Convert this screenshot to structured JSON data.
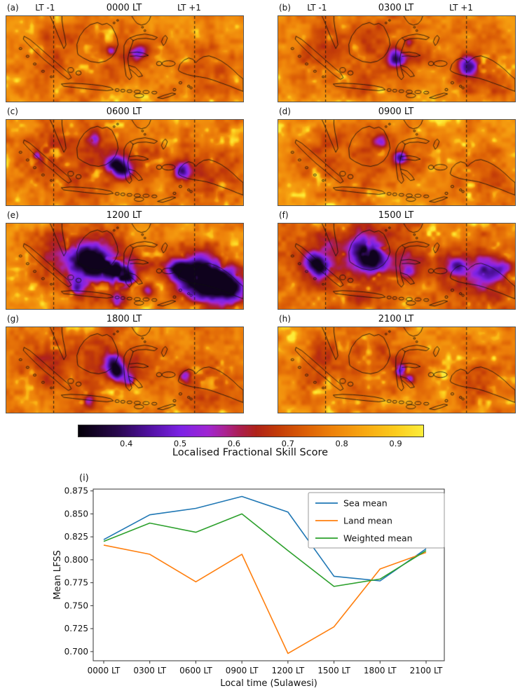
{
  "panels": [
    {
      "letter": "(a)",
      "title": "0000 LT",
      "lt_left": "LT -1",
      "lt_right": "LT +1"
    },
    {
      "letter": "(b)",
      "title": "0300 LT",
      "lt_left": "LT -1",
      "lt_right": "LT +1"
    },
    {
      "letter": "(c)",
      "title": "0600 LT"
    },
    {
      "letter": "(d)",
      "title": "0900 LT"
    },
    {
      "letter": "(e)",
      "title": "1200 LT"
    },
    {
      "letter": "(f)",
      "title": "1500 LT"
    },
    {
      "letter": "(g)",
      "title": "1800 LT"
    },
    {
      "letter": "(h)",
      "title": "2100 LT"
    }
  ],
  "colorbar": {
    "label": "Localised Fractional Skill Score",
    "ticks": [
      "0.4",
      "0.5",
      "0.6",
      "0.7",
      "0.8",
      "0.9"
    ],
    "vmin": 0.31,
    "vmax": 0.95
  },
  "line_chart": {
    "label": "(i)",
    "ylabel": "Mean LFSS",
    "xlabel": "Local time (Sulawesi)",
    "yticks": [
      "0.875",
      "0.850",
      "0.825",
      "0.800",
      "0.775",
      "0.750",
      "0.725",
      "0.700"
    ],
    "xticks": [
      "0000 LT",
      "0300 LT",
      "0600 LT",
      "0900 LT",
      "1200 LT",
      "1500 LT",
      "1800 LT",
      "2100 LT"
    ],
    "legend": [
      "Sea mean",
      "Land mean",
      "Weighted mean"
    ]
  },
  "chart_data": [
    {
      "type": "heatmap",
      "title": "Localised Fractional Skill Score maps at 3-hourly local times over the Maritime Continent",
      "panel_labels": [
        "(a)",
        "(b)",
        "(c)",
        "(d)",
        "(e)",
        "(f)",
        "(g)",
        "(h)"
      ],
      "panel_times": [
        "0000 LT",
        "0300 LT",
        "0600 LT",
        "0900 LT",
        "1200 LT",
        "1500 LT",
        "1800 LT",
        "2100 LT"
      ],
      "annotations": [
        "LT -1",
        "LT +1"
      ],
      "colorbar": {
        "label": "Localised Fractional Skill Score",
        "ticks": [
          0.4,
          0.5,
          0.6,
          0.7,
          0.8,
          0.9
        ],
        "vmin": 0.31,
        "vmax": 0.95
      }
    },
    {
      "type": "line",
      "title": "(i)",
      "categories": [
        "0000 LT",
        "0300 LT",
        "0600 LT",
        "0900 LT",
        "1200 LT",
        "1500 LT",
        "1800 LT",
        "2100 LT"
      ],
      "series": [
        {
          "name": "Sea mean",
          "color": "#1f77b4",
          "values": [
            0.822,
            0.849,
            0.856,
            0.869,
            0.852,
            0.782,
            0.777,
            0.812
          ]
        },
        {
          "name": "Land mean",
          "color": "#ff7f0e",
          "values": [
            0.816,
            0.806,
            0.776,
            0.806,
            0.698,
            0.727,
            0.79,
            0.808
          ]
        },
        {
          "name": "Weighted mean",
          "color": "#2ca02c",
          "values": [
            0.82,
            0.84,
            0.83,
            0.85,
            0.81,
            0.771,
            0.779,
            0.81
          ]
        }
      ],
      "xlabel": "Local time (Sulawesi)",
      "ylabel": "Mean LFSS",
      "ylim": [
        0.69,
        0.877
      ],
      "yticks": [
        0.875,
        0.85,
        0.825,
        0.8,
        0.775,
        0.75,
        0.725,
        0.7
      ],
      "legend_position": "upper right",
      "grid": false
    }
  ]
}
